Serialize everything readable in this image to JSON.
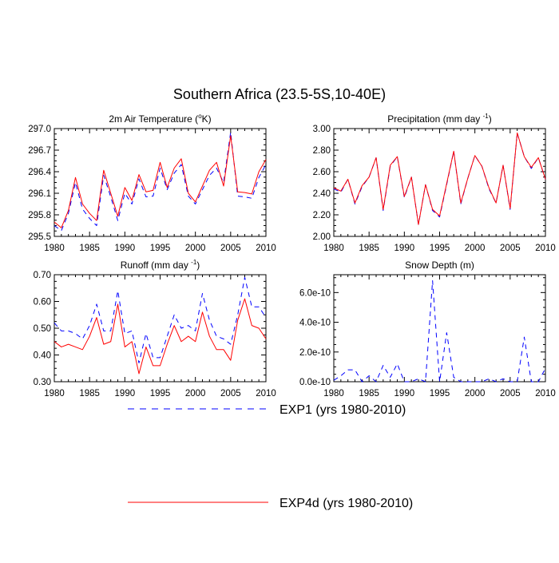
{
  "title": "Southern Africa (23.5-5S,10-40E)",
  "colors": {
    "exp1": "#0000ff",
    "exp4d": "#ff0000",
    "axis": "#000000"
  },
  "legend": [
    {
      "label": "EXP1 (yrs 1980-2010)",
      "style": "dashed",
      "color": "#0000ff"
    },
    {
      "label": "EXP4d (yrs 1980-2010)",
      "style": "solid",
      "color": "#ff0000"
    }
  ],
  "chart_data": [
    {
      "id": "temp",
      "type": "line",
      "title": "2m Air Temperature",
      "title_unit": "K",
      "xlabel": "",
      "ylabel": "",
      "xlim": [
        1980,
        2010
      ],
      "ylim": [
        295.5,
        297.0
      ],
      "xticks": [
        "1980",
        "1985",
        "1990",
        "1995",
        "2000",
        "2005",
        "2010"
      ],
      "yticks": [
        "295.5",
        "295.8",
        "296.1",
        "296.4",
        "296.7",
        "297.0"
      ],
      "x": [
        1980,
        1981,
        1982,
        1983,
        1984,
        1985,
        1986,
        1987,
        1988,
        1989,
        1990,
        1991,
        1992,
        1993,
        1994,
        1995,
        1996,
        1997,
        1998,
        1999,
        2000,
        2001,
        2002,
        2003,
        2004,
        2005,
        2006,
        2007,
        2008,
        2009,
        2010
      ],
      "series": [
        {
          "name": "EXP1 (yrs 1980-2010)",
          "style": "dashed",
          "values": [
            295.65,
            295.58,
            295.82,
            296.25,
            295.88,
            295.75,
            295.65,
            296.35,
            296.05,
            295.72,
            296.1,
            295.95,
            296.3,
            296.05,
            296.06,
            296.45,
            296.15,
            296.38,
            296.5,
            296.06,
            295.95,
            296.15,
            296.35,
            296.45,
            296.25,
            296.95,
            296.06,
            296.05,
            296.03,
            296.32,
            296.5
          ]
        },
        {
          "name": "EXP4d (yrs 1980-2010)",
          "style": "solid",
          "values": [
            295.7,
            295.62,
            295.86,
            296.32,
            295.95,
            295.82,
            295.72,
            296.42,
            296.1,
            295.78,
            296.18,
            296.0,
            296.36,
            296.12,
            296.14,
            296.53,
            296.18,
            296.45,
            296.58,
            296.1,
            295.98,
            296.2,
            296.42,
            296.53,
            296.2,
            296.9,
            296.12,
            296.11,
            296.09,
            296.4,
            296.57
          ]
        }
      ]
    },
    {
      "id": "precip",
      "type": "line",
      "title": "Precipitation",
      "title_unit": "mm day",
      "xlabel": "",
      "ylabel": "",
      "xlim": [
        1980,
        2010
      ],
      "ylim": [
        2.0,
        3.0
      ],
      "xticks": [
        "1980",
        "1985",
        "1990",
        "1995",
        "2000",
        "2005",
        "2010"
      ],
      "yticks": [
        "2.00",
        "2.20",
        "2.40",
        "2.60",
        "2.80",
        "3.00"
      ],
      "x": [
        1980,
        1981,
        1982,
        1983,
        1984,
        1985,
        1986,
        1987,
        1988,
        1989,
        1990,
        1991,
        1992,
        1993,
        1994,
        1995,
        1996,
        1997,
        1998,
        1999,
        2000,
        2001,
        2002,
        2003,
        2004,
        2005,
        2006,
        2007,
        2008,
        2009,
        2010
      ],
      "series": [
        {
          "name": "EXP1 (yrs 1980-2010)",
          "style": "dashed",
          "values": [
            2.44,
            2.41,
            2.53,
            2.3,
            2.46,
            2.55,
            2.73,
            2.24,
            2.65,
            2.74,
            2.36,
            2.55,
            2.11,
            2.48,
            2.24,
            2.18,
            2.48,
            2.79,
            2.3,
            2.54,
            2.75,
            2.65,
            2.44,
            2.31,
            2.66,
            2.25,
            2.96,
            2.74,
            2.63,
            2.73,
            2.53
          ]
        },
        {
          "name": "EXP4d (yrs 1980-2010)",
          "style": "solid",
          "values": [
            2.45,
            2.42,
            2.53,
            2.31,
            2.47,
            2.55,
            2.73,
            2.25,
            2.66,
            2.74,
            2.37,
            2.55,
            2.11,
            2.48,
            2.25,
            2.19,
            2.49,
            2.79,
            2.31,
            2.54,
            2.75,
            2.65,
            2.45,
            2.31,
            2.66,
            2.26,
            2.96,
            2.74,
            2.64,
            2.73,
            2.53
          ]
        }
      ]
    },
    {
      "id": "runoff",
      "type": "line",
      "title": "Runoff",
      "title_unit": "mm day",
      "xlabel": "",
      "ylabel": "",
      "xlim": [
        1980,
        2010
      ],
      "ylim": [
        0.3,
        0.7
      ],
      "xticks": [
        "1980",
        "1985",
        "1990",
        "1995",
        "2000",
        "2005",
        "2010"
      ],
      "yticks": [
        "0.30",
        "0.40",
        "0.50",
        "0.60",
        "0.70"
      ],
      "x": [
        1980,
        1981,
        1982,
        1983,
        1984,
        1985,
        1986,
        1987,
        1988,
        1989,
        1990,
        1991,
        1992,
        1993,
        1994,
        1995,
        1996,
        1997,
        1998,
        1999,
        2000,
        2001,
        2002,
        2003,
        2004,
        2005,
        2006,
        2007,
        2008,
        2009,
        2010
      ],
      "series": [
        {
          "name": "EXP1 (yrs 1980-2010)",
          "style": "dashed",
          "values": [
            0.52,
            0.49,
            0.49,
            0.48,
            0.46,
            0.51,
            0.59,
            0.49,
            0.49,
            0.64,
            0.48,
            0.49,
            0.37,
            0.48,
            0.39,
            0.39,
            0.47,
            0.55,
            0.5,
            0.51,
            0.49,
            0.63,
            0.53,
            0.47,
            0.46,
            0.44,
            0.55,
            0.69,
            0.58,
            0.58,
            0.54
          ]
        },
        {
          "name": "EXP4d (yrs 1980-2010)",
          "style": "solid",
          "values": [
            0.45,
            0.43,
            0.44,
            0.43,
            0.42,
            0.47,
            0.54,
            0.44,
            0.45,
            0.59,
            0.43,
            0.45,
            0.33,
            0.43,
            0.36,
            0.36,
            0.44,
            0.51,
            0.45,
            0.47,
            0.45,
            0.56,
            0.47,
            0.42,
            0.42,
            0.38,
            0.53,
            0.61,
            0.51,
            0.5,
            0.46
          ]
        }
      ]
    },
    {
      "id": "snow",
      "type": "line",
      "title": "Snow Depth (m)",
      "title_unit": "",
      "xlabel": "",
      "ylabel": "",
      "xlim": [
        1980,
        2010
      ],
      "ylim": [
        0,
        7.2e-10
      ],
      "xticks": [
        "1980",
        "1985",
        "1990",
        "1995",
        "2000",
        "2005",
        "2010"
      ],
      "yticks": [
        "0.0e-10",
        "2.0e-10",
        "4.0e-10",
        "6.0e-10"
      ],
      "x": [
        1980,
        1981,
        1982,
        1983,
        1984,
        1985,
        1986,
        1987,
        1988,
        1989,
        1990,
        1991,
        1992,
        1993,
        1994,
        1995,
        1996,
        1997,
        1998,
        1999,
        2000,
        2001,
        2002,
        2003,
        2004,
        2005,
        2006,
        2007,
        2008,
        2009,
        2010
      ],
      "series": [
        {
          "name": "EXP1 (yrs 1980-2010)",
          "style": "dashed",
          "values": [
            1e-11,
            4e-11,
            8e-11,
            8e-11,
            0,
            4e-11,
            0,
            1.1e-10,
            3e-11,
            1.2e-10,
            0,
            0,
            2e-11,
            0,
            6.8e-10,
            0,
            3.3e-10,
            3e-11,
            0,
            0,
            0,
            0,
            2e-11,
            0,
            2e-11,
            0,
            0,
            3e-10,
            0,
            0,
            9e-11
          ]
        }
      ]
    }
  ]
}
